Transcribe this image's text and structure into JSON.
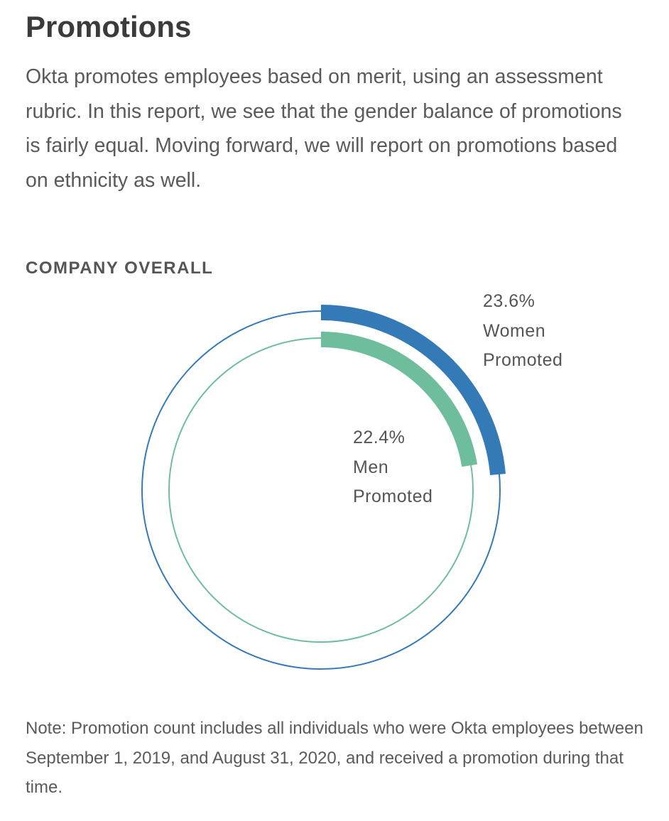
{
  "header": {
    "title": "Promotions",
    "intro": "Okta promotes employees based on merit, using an assessment rubric. In this report, we see that the gender balance of promotions is fairly equal. Moving forward, we will report on promotions based on ethnicity as well."
  },
  "section_label": "COMPANY OVERALL",
  "chart_data": {
    "type": "radial-bar",
    "title": "COMPANY OVERALL",
    "unit": "%",
    "max": 100,
    "series": [
      {
        "name": "Women Promoted",
        "value": 23.6,
        "label_value": "23.6%",
        "label_line1": "Women",
        "label_line2": "Promoted",
        "color": "#337ab7"
      },
      {
        "name": "Men Promoted",
        "value": 22.4,
        "label_value": "22.4%",
        "label_line1": "Men",
        "label_line2": "Promoted",
        "color": "#6ebd9d"
      }
    ]
  },
  "note": "Note: Promotion count includes all individuals who were Okta employees between September 1, 2019, and August 31, 2020, and received a promotion during that time."
}
